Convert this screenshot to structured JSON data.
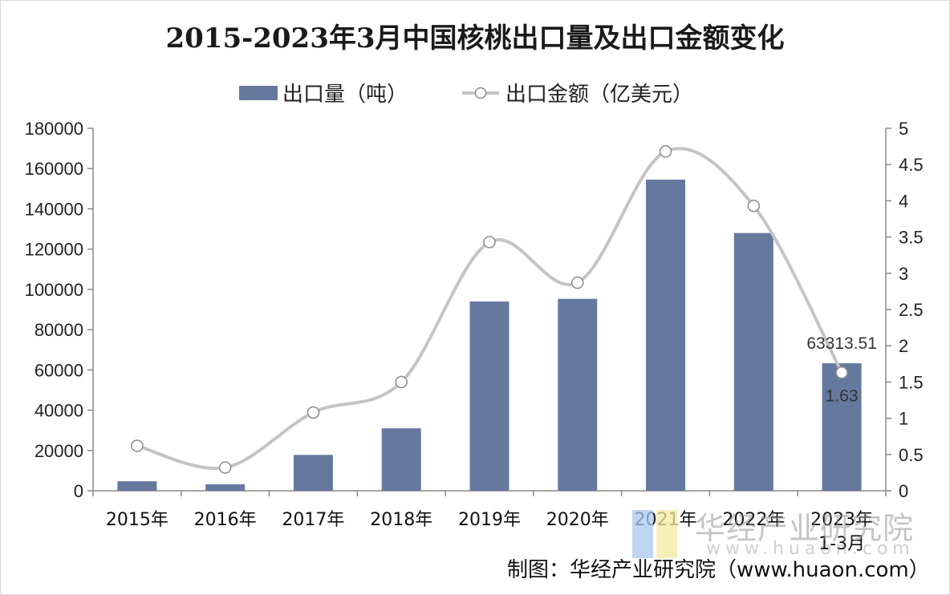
{
  "title": "2015-2023年3月中国核桃出口量及出口金额变化",
  "legend": {
    "bar_label": "出口量（吨）",
    "line_label": "出口金额（亿美元）"
  },
  "credit": "制图：华经产业研究院（www.huaon.com）",
  "watermark": {
    "cn": "华经产业研究院",
    "en": "www.huaon.com"
  },
  "colors": {
    "bar": "#65799f",
    "line": "#c4c4c4",
    "marker_fill": "#ffffff",
    "marker_stroke": "#8a8a8a",
    "axis": "#888888"
  },
  "chart_data": {
    "type": "bar",
    "title": "2015-2023年3月中国核桃出口量及出口金额变化",
    "categories": [
      "2015年",
      "2016年",
      "2017年",
      "2018年",
      "2019年",
      "2020年",
      "2021年",
      "2022年",
      "2023年 1-3月"
    ],
    "category_lines": [
      [
        "2015年"
      ],
      [
        "2016年"
      ],
      [
        "2017年"
      ],
      [
        "2018年"
      ],
      [
        "2019年"
      ],
      [
        "2020年"
      ],
      [
        "2021年"
      ],
      [
        "2022年"
      ],
      [
        "2023年",
        "1-3月"
      ]
    ],
    "series": [
      {
        "name": "出口量（吨）",
        "type": "bar",
        "axis": "left",
        "values": [
          4700,
          3200,
          17800,
          31000,
          94000,
          95300,
          154500,
          128000,
          63313.51
        ]
      },
      {
        "name": "出口金额（亿美元）",
        "type": "line",
        "smooth": true,
        "axis": "right",
        "values": [
          0.62,
          0.32,
          1.08,
          1.5,
          3.43,
          2.87,
          4.68,
          3.93,
          1.63
        ]
      }
    ],
    "data_labels": [
      {
        "series": 0,
        "index": 8,
        "text": "63313.51"
      },
      {
        "series": 1,
        "index": 8,
        "text": "1.63"
      }
    ],
    "y_left": {
      "lim": [
        0,
        180000
      ],
      "ticks": [
        "0",
        "20000",
        "40000",
        "60000",
        "80000",
        "100000",
        "120000",
        "140000",
        "160000",
        "180000"
      ]
    },
    "y_right": {
      "lim": [
        0,
        5
      ],
      "ticks": [
        "0",
        "0.5",
        "1",
        "1.5",
        "2",
        "2.5",
        "3",
        "3.5",
        "4",
        "4.5",
        "5"
      ]
    },
    "grid": false,
    "legend_position": "top"
  }
}
